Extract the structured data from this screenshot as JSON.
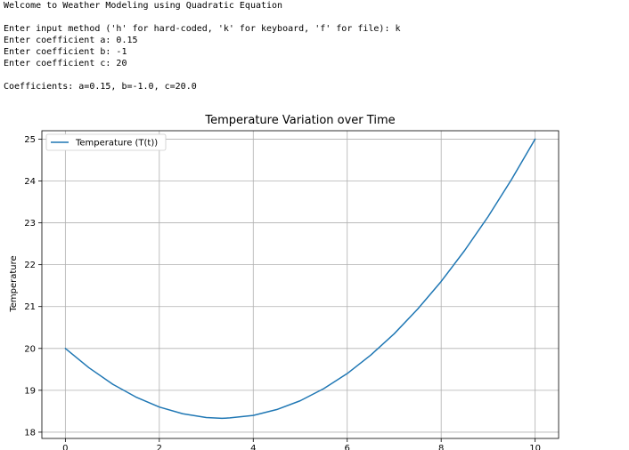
{
  "console": {
    "welcome": "Welcome to Weather Modeling using Quadratic Equation",
    "prompt_method": "Enter input method ('h' for hard-coded, 'k' for keyboard, 'f' for file): k",
    "prompt_a": "Enter coefficient a: 0.15",
    "prompt_b": "Enter coefficient b: -1",
    "prompt_c": "Enter coefficient c: 20",
    "coefficients": "Coefficients: a=0.15, b=-1.0, c=20.0"
  },
  "colors": {
    "line": "#1f77b4",
    "grid": "#b0b0b0",
    "axis": "#000000"
  },
  "chart_data": {
    "type": "line",
    "title": "Temperature Variation over Time",
    "xlabel": "",
    "ylabel": "Temperature",
    "legend": "top-left",
    "grid": true,
    "xlim": [
      -0.5,
      10.5
    ],
    "ylim": [
      17.85,
      25.2
    ],
    "x_ticks": [
      0,
      2,
      4,
      6,
      8,
      10
    ],
    "y_ticks": [
      18,
      19,
      20,
      21,
      22,
      23,
      24,
      25
    ],
    "series": [
      {
        "name": "Temperature (T(t))",
        "x": [
          0,
          0.5,
          1,
          1.5,
          2,
          2.5,
          3,
          3.333,
          3.5,
          4,
          4.5,
          5,
          5.5,
          6,
          6.5,
          7,
          7.5,
          8,
          8.5,
          9,
          9.5,
          10
        ],
        "values": [
          20.0,
          19.54,
          19.15,
          18.84,
          18.6,
          18.44,
          18.35,
          18.33,
          18.34,
          18.4,
          18.54,
          18.75,
          19.04,
          19.4,
          19.84,
          20.35,
          20.94,
          21.6,
          22.34,
          23.15,
          24.04,
          25.0
        ]
      }
    ]
  }
}
